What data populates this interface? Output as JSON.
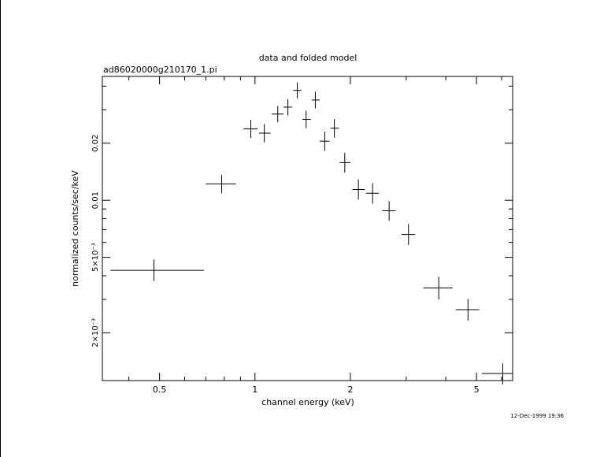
{
  "chart_data": {
    "type": "scatter",
    "title": "data and folded model",
    "subtitle": "ad86020000g210170_1.pi",
    "xlabel": "channel energy (keV)",
    "ylabel": "normalized counts/sec/keV",
    "timestamp": "12-Dec-1999 19:36",
    "x_scale": "log",
    "y_scale": "log",
    "xlim": [
      0.33,
      6.5
    ],
    "ylim": [
      0.00112,
      0.045
    ],
    "x_ticks": [
      {
        "value": 0.5,
        "label": "0.5"
      },
      {
        "value": 1,
        "label": "1"
      },
      {
        "value": 2,
        "label": "2"
      },
      {
        "value": 5,
        "label": "5"
      }
    ],
    "y_ticks": [
      {
        "value": 0.002,
        "label": "2×10⁻³"
      },
      {
        "value": 0.005,
        "label": "5×10⁻³"
      },
      {
        "value": 0.01,
        "label": "0.01"
      },
      {
        "value": 0.02,
        "label": "0.02"
      }
    ],
    "grid": false,
    "points": [
      {
        "x": 0.48,
        "xlo": 0.35,
        "xhi": 0.69,
        "y": 0.00427,
        "ylo": 0.00375,
        "yhi": 0.00487
      },
      {
        "x": 0.785,
        "xlo": 0.7,
        "xhi": 0.87,
        "y": 0.0122,
        "ylo": 0.0109,
        "yhi": 0.0136
      },
      {
        "x": 0.97,
        "xlo": 0.92,
        "xhi": 1.02,
        "y": 0.0238,
        "ylo": 0.0213,
        "yhi": 0.0266
      },
      {
        "x": 1.07,
        "xlo": 1.03,
        "xhi": 1.12,
        "y": 0.0226,
        "ylo": 0.0202,
        "yhi": 0.0252
      },
      {
        "x": 1.18,
        "xlo": 1.13,
        "xhi": 1.23,
        "y": 0.0285,
        "ylo": 0.0258,
        "yhi": 0.0314
      },
      {
        "x": 1.27,
        "xlo": 1.23,
        "xhi": 1.31,
        "y": 0.031,
        "ylo": 0.028,
        "yhi": 0.0342
      },
      {
        "x": 1.36,
        "xlo": 1.32,
        "xhi": 1.4,
        "y": 0.038,
        "ylo": 0.0345,
        "yhi": 0.0418
      },
      {
        "x": 1.45,
        "xlo": 1.41,
        "xhi": 1.5,
        "y": 0.0267,
        "ylo": 0.024,
        "yhi": 0.0297
      },
      {
        "x": 1.55,
        "xlo": 1.51,
        "xhi": 1.6,
        "y": 0.0338,
        "ylo": 0.0305,
        "yhi": 0.0374
      },
      {
        "x": 1.66,
        "xlo": 1.6,
        "xhi": 1.72,
        "y": 0.0205,
        "ylo": 0.0182,
        "yhi": 0.023
      },
      {
        "x": 1.78,
        "xlo": 1.73,
        "xhi": 1.84,
        "y": 0.024,
        "ylo": 0.0214,
        "yhi": 0.0268
      },
      {
        "x": 1.92,
        "xlo": 1.85,
        "xhi": 2.0,
        "y": 0.0158,
        "ylo": 0.014,
        "yhi": 0.0178
      },
      {
        "x": 2.12,
        "xlo": 2.03,
        "xhi": 2.22,
        "y": 0.0114,
        "ylo": 0.0101,
        "yhi": 0.0129
      },
      {
        "x": 2.35,
        "xlo": 2.24,
        "xhi": 2.46,
        "y": 0.0109,
        "ylo": 0.0096,
        "yhi": 0.0123
      },
      {
        "x": 2.65,
        "xlo": 2.52,
        "xhi": 2.78,
        "y": 0.0088,
        "ylo": 0.0078,
        "yhi": 0.0099
      },
      {
        "x": 3.05,
        "xlo": 2.9,
        "xhi": 3.2,
        "y": 0.0066,
        "ylo": 0.0058,
        "yhi": 0.0075
      },
      {
        "x": 3.8,
        "xlo": 3.4,
        "xhi": 4.2,
        "y": 0.00345,
        "ylo": 0.003,
        "yhi": 0.00395
      },
      {
        "x": 4.7,
        "xlo": 4.3,
        "xhi": 5.1,
        "y": 0.00265,
        "ylo": 0.00232,
        "yhi": 0.00302
      },
      {
        "x": 6.05,
        "xlo": 5.2,
        "xhi": 6.5,
        "y": 0.00122,
        "ylo": 0.00107,
        "yhi": 0.00138
      }
    ]
  }
}
